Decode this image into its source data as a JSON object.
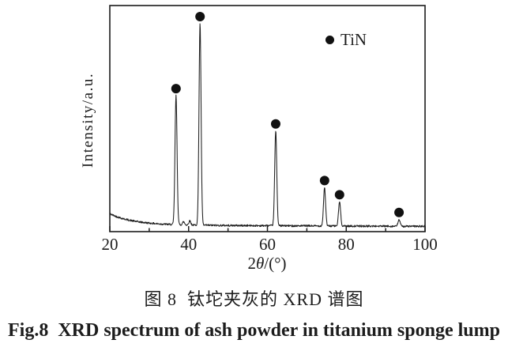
{
  "figure": {
    "caption_zh": "图 8  钛坨夹灰的 XRD 谱图",
    "caption_en": "Fig.8  XRD spectrum of ash powder in titanium sponge lump"
  },
  "legend": {
    "marker": "filled-circle-icon",
    "label": "TiN"
  },
  "chart_data": {
    "type": "line",
    "title": "",
    "xlabel": "2θ/(°)",
    "xlabel_parts": {
      "prefix": "2",
      "theta": "θ",
      "suffix": "/(°)"
    },
    "ylabel": "Intensity/a.u.",
    "xlim": [
      20,
      100
    ],
    "x_major_ticks": [
      20,
      40,
      60,
      80,
      100
    ],
    "x_minor_ticks": [
      30,
      50,
      70,
      90
    ],
    "legend_position": "upper-right-inside",
    "grid": false,
    "series": [
      {
        "name": "TiN",
        "marker": "filled-circle",
        "peaks": [
          {
            "two_theta": 36.8,
            "rel_intensity": 64,
            "marked": true
          },
          {
            "two_theta": 38.7,
            "rel_intensity": 1.5,
            "marked": false
          },
          {
            "two_theta": 40.3,
            "rel_intensity": 2,
            "marked": false
          },
          {
            "two_theta": 42.9,
            "rel_intensity": 100,
            "marked": true
          },
          {
            "two_theta": 62.1,
            "rel_intensity": 47,
            "marked": true
          },
          {
            "two_theta": 74.5,
            "rel_intensity": 19,
            "marked": true
          },
          {
            "two_theta": 78.3,
            "rel_intensity": 12,
            "marked": true
          },
          {
            "two_theta": 93.4,
            "rel_intensity": 3.3,
            "marked": true
          }
        ]
      }
    ],
    "background_curve": {
      "base": 3.2,
      "amp": 5.5,
      "decay": 6.0,
      "slope": 0.008,
      "noise": 0.45
    },
    "line_color": "#1f1f1f",
    "marker_color": "#111111",
    "border_color": "#1c1c1c"
  }
}
